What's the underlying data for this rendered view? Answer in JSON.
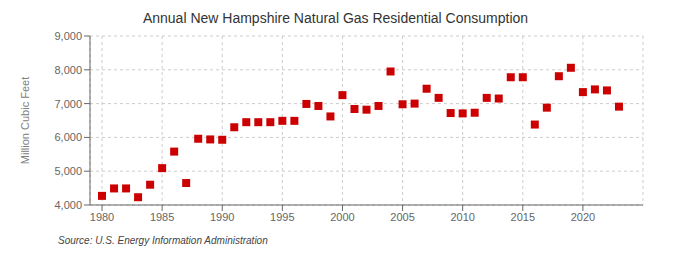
{
  "chart_data": {
    "type": "scatter",
    "title": "Annual New Hampshire Natural Gas Residential Consumption",
    "ylabel": "Million Cubic Feet",
    "annotation": "Source: U.S. Energy Information Administration",
    "x": [
      1980,
      1981,
      1982,
      1983,
      1984,
      1985,
      1986,
      1987,
      1988,
      1989,
      1990,
      1991,
      1992,
      1993,
      1994,
      1995,
      1996,
      1997,
      1998,
      1999,
      2000,
      2001,
      2002,
      2003,
      2004,
      2005,
      2006,
      2007,
      2008,
      2009,
      2010,
      2011,
      2012,
      2013,
      2014,
      2015,
      2016,
      2017,
      2018,
      2019,
      2020,
      2021,
      2022,
      2023
    ],
    "values": [
      4270,
      4490,
      4490,
      4230,
      4600,
      5090,
      5580,
      4650,
      5960,
      5940,
      5930,
      6300,
      6450,
      6450,
      6450,
      6490,
      6490,
      6990,
      6930,
      6620,
      7250,
      6840,
      6820,
      6930,
      7950,
      6980,
      7000,
      7440,
      7170,
      6720,
      6710,
      6730,
      7170,
      7150,
      7780,
      7780,
      6380,
      6880,
      7810,
      8060,
      7340,
      7420,
      7390,
      6910
    ],
    "color": "#cc0000",
    "marker": "square",
    "xlim": [
      1979,
      2025
    ],
    "ylim": [
      4000,
      9000
    ],
    "xticks": [
      1980,
      1985,
      1990,
      1995,
      2000,
      2005,
      2010,
      2015,
      2020
    ],
    "yticks": [
      {
        "value": 4000,
        "label": "4,000"
      },
      {
        "value": 5000,
        "label": "5,000"
      },
      {
        "value": 6000,
        "label": "6,000"
      },
      {
        "value": 7000,
        "label": "7,000"
      },
      {
        "value": 8000,
        "label": "8,000"
      },
      {
        "value": 9000,
        "label": "9,000"
      }
    ],
    "grid": true
  }
}
